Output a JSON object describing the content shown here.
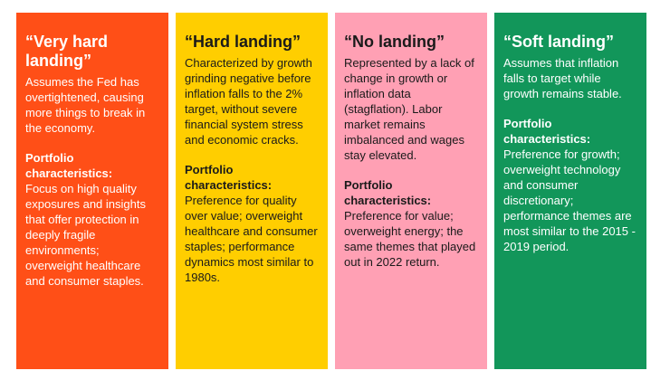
{
  "cards": [
    {
      "title": "“Very hard landing”",
      "description": "Assumes the Fed has overtightened, causing more things to break in the economy.",
      "portfolio_label": "Portfolio characteristics:",
      "portfolio_text": "Focus on high quality exposures and insights that offer protection in deeply fragile environments; overweight healthcare and consumer staples.",
      "color": "#ff4f17"
    },
    {
      "title": "“Hard landing”",
      "description": "Characterized by growth grinding negative before inflation falls to the 2% target, without severe financial system stress and economic cracks.",
      "portfolio_label": "Portfolio characteristics:",
      "portfolio_text": "Preference for quality over value; overweight healthcare and consumer staples; performance dynamics most similar to 1980s.",
      "color": "#ffce00"
    },
    {
      "title": "“No landing”",
      "description": "Represented by a lack of change in growth or inflation data (stagflation). Labor market remains imbalanced and wages stay elevated.",
      "portfolio_label": "Portfolio characteristics:",
      "portfolio_text": "Preference for value; overweight energy; the same themes that played out in 2022 return.",
      "color": "#ffa0b4"
    },
    {
      "title": "“Soft landing”",
      "description": "Assumes that inflation falls to target while growth remains stable.",
      "portfolio_label": "Portfolio characteristics:",
      "portfolio_text": "Preference for growth; overweight technology and consumer discretionary; performance themes are most similar to the 2015 - 2019 period.",
      "color": "#12965a"
    }
  ]
}
